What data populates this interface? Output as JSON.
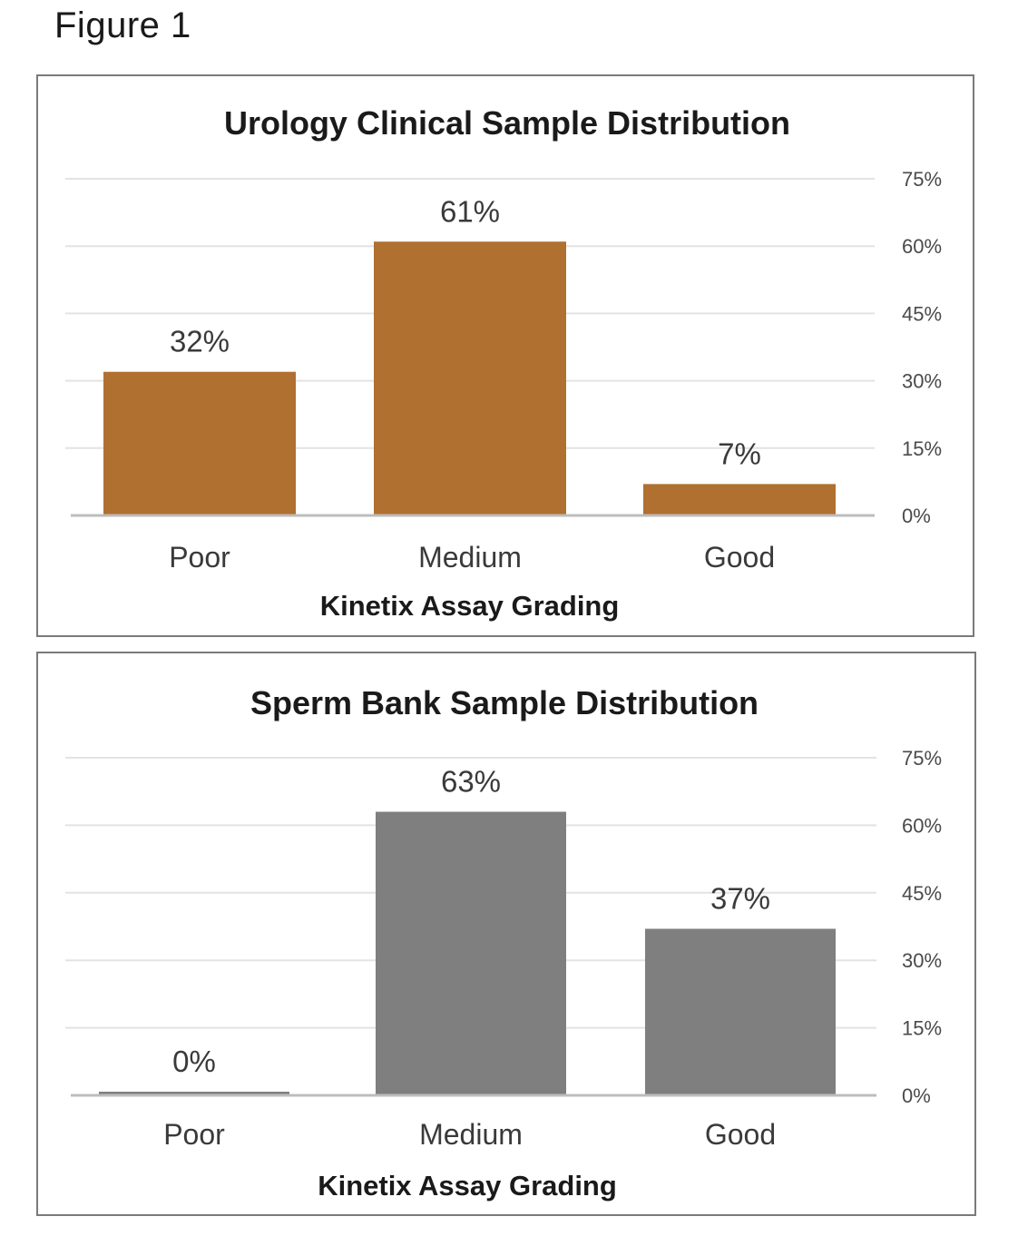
{
  "figure_label": "Figure 1",
  "chart_data": [
    {
      "type": "bar",
      "title": "Urology Clinical Sample Distribution",
      "xlabel": "Kinetix Assay Grading",
      "ylabel": "",
      "categories": [
        "Poor",
        "Medium",
        "Good"
      ],
      "values": [
        32,
        61,
        7
      ],
      "data_labels": [
        "32%",
        "61%",
        "7%"
      ],
      "ylim": [
        0,
        75
      ],
      "yticks": [
        0,
        15,
        30,
        45,
        60,
        75
      ],
      "ytick_labels": [
        "0%",
        "15%",
        "30%",
        "45%",
        "60%",
        "75%"
      ],
      "y_axis_side": "right",
      "grid": true,
      "bar_color": "#b07030"
    },
    {
      "type": "bar",
      "title": "Sperm Bank Sample Distribution",
      "xlabel": "Kinetix Assay Grading",
      "ylabel": "",
      "categories": [
        "Poor",
        "Medium",
        "Good"
      ],
      "values": [
        0,
        63,
        37
      ],
      "data_labels": [
        "0%",
        "63%",
        "37%"
      ],
      "ylim": [
        0,
        75
      ],
      "yticks": [
        0,
        15,
        30,
        45,
        60,
        75
      ],
      "ytick_labels": [
        "0%",
        "15%",
        "30%",
        "45%",
        "60%",
        "75%"
      ],
      "y_axis_side": "right",
      "grid": true,
      "bar_color": "#7f7f7f"
    }
  ]
}
